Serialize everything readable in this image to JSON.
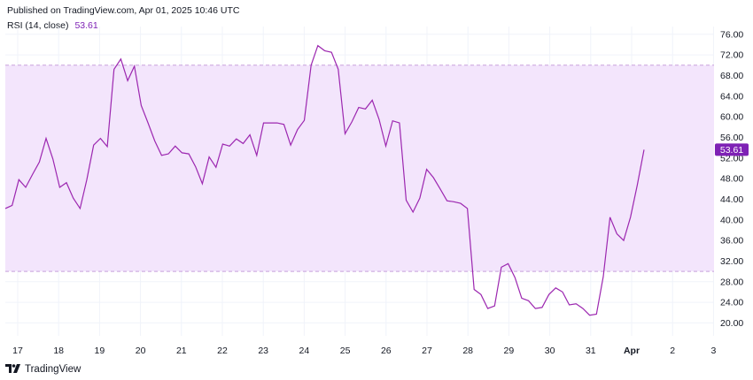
{
  "header": {
    "published": "Published on TradingView.com, Apr 01, 2025 10:46 UTC"
  },
  "legend": {
    "name": "RSI (14, close)",
    "value": "53.61"
  },
  "footer": {
    "brand": "TradingView"
  },
  "colors": {
    "line": "#9c27b0",
    "band": "#f3e5fc",
    "badge": "#7e21b5",
    "grid": "#f0f3fa",
    "text": "#131722"
  },
  "chart_data": {
    "type": "line",
    "series": [
      {
        "values": [
          42.2,
          42.8,
          47.8,
          46.3,
          48.8,
          51.2,
          55.8,
          51.8,
          46.3,
          47.2,
          44.2,
          42.2,
          47.8,
          54.5,
          55.8,
          54.2,
          69.2,
          71.2,
          67.0,
          69.8,
          62.2,
          58.8,
          55.3,
          52.5,
          52.8,
          54.3,
          53.0,
          52.8,
          50.3,
          47.0,
          52.2,
          50.2,
          54.7,
          54.3,
          55.7,
          54.8,
          56.5,
          52.5,
          58.8,
          58.8,
          58.8,
          58.5,
          54.5,
          57.5,
          59.3,
          70.0,
          73.8,
          72.8,
          72.5,
          69.2,
          56.7,
          59.0,
          61.8,
          61.5,
          63.2,
          59.5,
          54.3,
          59.2,
          58.8,
          43.8,
          41.5,
          44.2,
          49.8,
          48.2,
          46.0,
          43.7,
          43.5,
          43.2,
          42.2,
          26.5,
          25.5,
          22.8,
          23.3,
          30.8,
          31.5,
          28.8,
          24.8,
          24.3,
          22.8,
          23.0,
          25.5,
          26.8,
          26.0,
          23.5,
          23.7,
          22.8,
          21.5,
          21.7,
          29.0,
          40.5,
          37.3,
          36.0,
          40.5,
          46.7,
          53.61
        ]
      }
    ],
    "x_ticks": [
      "17",
      "18",
      "19",
      "20",
      "21",
      "22",
      "23",
      "24",
      "25",
      "26",
      "27",
      "28",
      "29",
      "30",
      "31",
      "Apr",
      "2",
      "3"
    ],
    "y_ticks": [
      "20.00",
      "24.00",
      "28.00",
      "32.00",
      "36.00",
      "40.00",
      "44.00",
      "48.00",
      "52.00",
      "56.00",
      "60.00",
      "64.00",
      "68.00",
      "72.00",
      "76.00"
    ],
    "y_range": [
      17.5,
      77.5
    ],
    "band": [
      30,
      70
    ],
    "last_value_label": "53.61",
    "grid": true
  }
}
